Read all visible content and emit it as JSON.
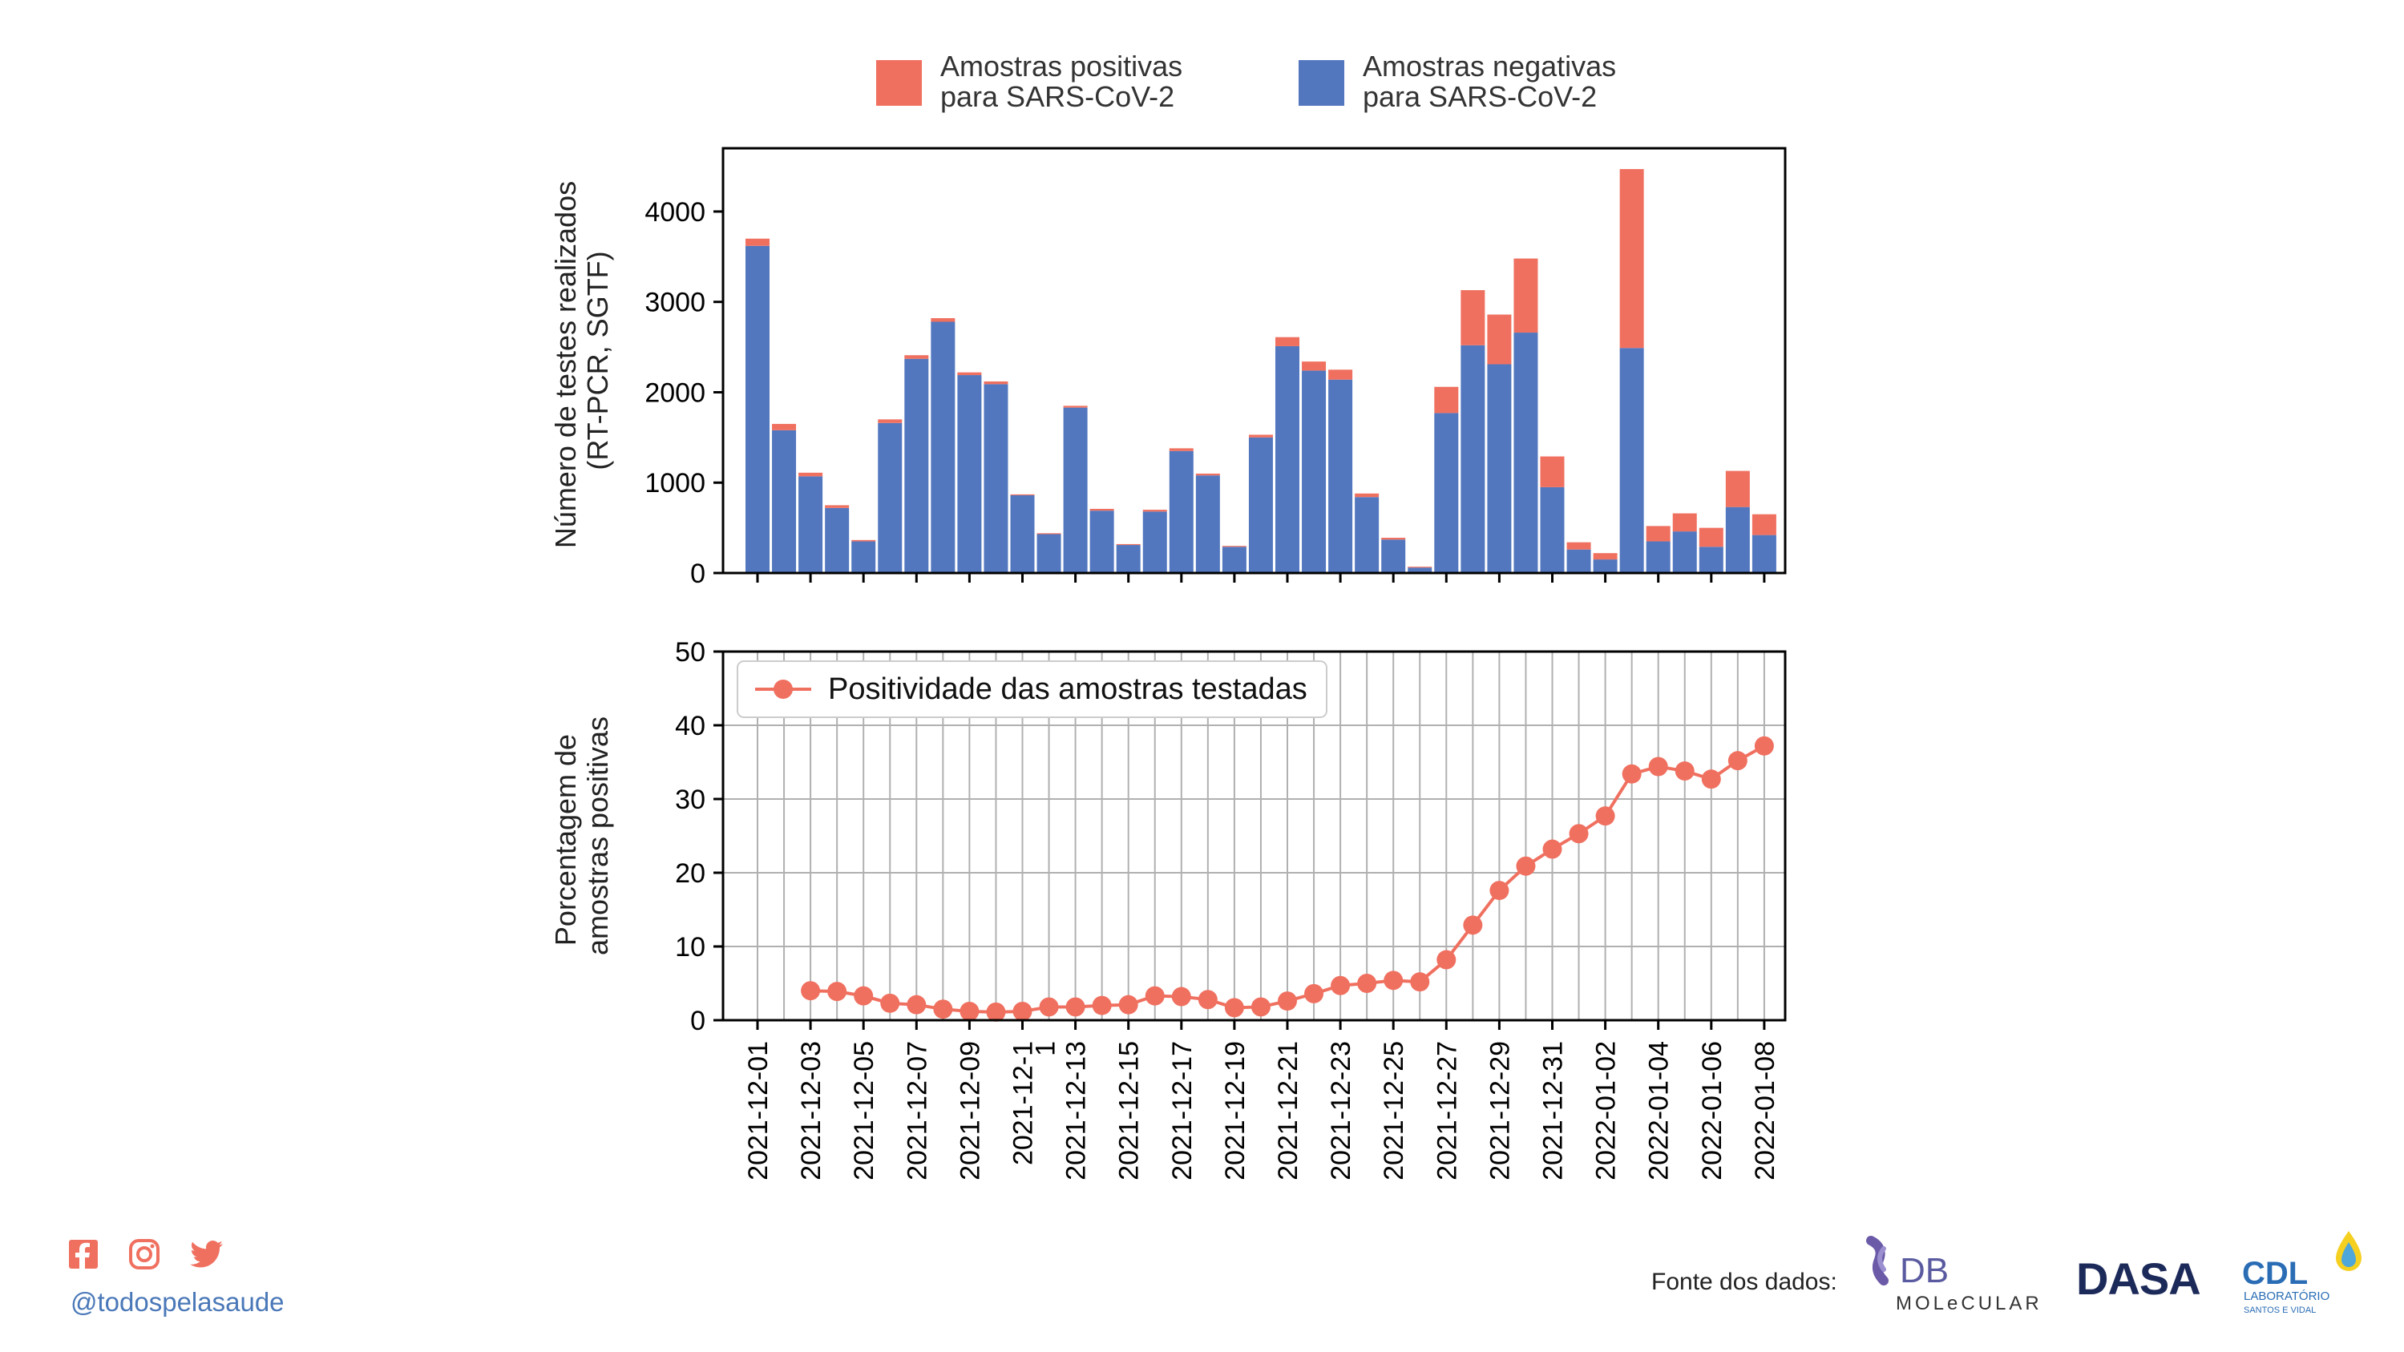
{
  "chart_data": [
    {
      "type": "bar",
      "stacked": true,
      "ylabel": "Número de testes realizados\n(RT-PCR, SGTF)",
      "ylim": [
        0,
        4700
      ],
      "yticks": [
        0,
        1000,
        2000,
        3000,
        4000
      ],
      "legend_position": "top-center, above plot",
      "series": [
        {
          "name": "Amostras positivas\npara SARS-CoV-2",
          "color": "#f07060",
          "values": [
            80,
            70,
            40,
            30,
            15,
            40,
            40,
            40,
            30,
            30,
            10,
            10,
            20,
            20,
            10,
            20,
            30,
            20,
            10,
            30,
            100,
            100,
            110,
            40,
            20,
            10,
            290,
            610,
            550,
            820,
            340,
            80,
            70,
            1980,
            170,
            200,
            210,
            400,
            230
          ]
        },
        {
          "name": "Amostras negativas\npara SARS-CoV-2",
          "color": "#5277bf",
          "values": [
            3620,
            1580,
            1070,
            720,
            350,
            1660,
            2370,
            2780,
            2190,
            2090,
            860,
            430,
            1830,
            690,
            310,
            680,
            1350,
            1080,
            290,
            1500,
            2510,
            2240,
            2140,
            840,
            370,
            60,
            1770,
            2520,
            2310,
            2660,
            950,
            260,
            150,
            2490,
            350,
            460,
            290,
            730,
            420
          ]
        }
      ]
    },
    {
      "type": "line",
      "ylabel": "Porcentagem de\namostras positivas",
      "ylim": [
        0,
        50
      ],
      "yticks": [
        0,
        10,
        20,
        30,
        40,
        50
      ],
      "grid": true,
      "legend_position": "top-left",
      "x_tick_labels": [
        "2021-12-01",
        "2021-12-03",
        "2021-12-05",
        "2021-12-07",
        "2021-12-09",
        "2021-12-1",
        "2021-12-13",
        "2021-12-15",
        "2021-12-17",
        "2021-12-19",
        "2021-12-21",
        "2021-12-23",
        "2021-12-25",
        "2021-12-27",
        "2021-12-29",
        "2021-12-31",
        "2022-01-02",
        "2022-01-04",
        "2022-01-06",
        "2022-01-08"
      ],
      "extra_tick_label": "1",
      "series": [
        {
          "name": "Positividade das amostras testadas",
          "color": "#f07060",
          "x": [
            "2021-12-03",
            "2021-12-04",
            "2021-12-05",
            "2021-12-06",
            "2021-12-07",
            "2021-12-08",
            "2021-12-09",
            "2021-12-10",
            "2021-12-11",
            "2021-12-12",
            "2021-12-13",
            "2021-12-14",
            "2021-12-15",
            "2021-12-16",
            "2021-12-17",
            "2021-12-18",
            "2021-12-19",
            "2021-12-20",
            "2021-12-21",
            "2021-12-22",
            "2021-12-23",
            "2021-12-24",
            "2021-12-25",
            "2021-12-26",
            "2021-12-27",
            "2021-12-28",
            "2021-12-29",
            "2021-12-30",
            "2021-12-31",
            "2022-01-01",
            "2022-01-02",
            "2022-01-03",
            "2022-01-04",
            "2022-01-05",
            "2022-01-06",
            "2022-01-07",
            "2022-01-08"
          ],
          "values": [
            4.0,
            3.9,
            3.3,
            2.3,
            2.1,
            1.5,
            1.2,
            1.1,
            1.2,
            1.8,
            1.8,
            2.0,
            2.1,
            3.3,
            3.2,
            2.8,
            1.7,
            1.8,
            2.6,
            3.6,
            4.7,
            5.0,
            5.4,
            5.2,
            8.2,
            12.9,
            17.6,
            20.9,
            23.2,
            25.3,
            27.7,
            33.4,
            34.4,
            33.8,
            32.7,
            35.2,
            37.2
          ]
        }
      ]
    }
  ],
  "footer": {
    "handle": "@todospelasaude",
    "fonte": "Fonte dos dados:",
    "social_icons": [
      "facebook-icon",
      "instagram-icon",
      "twitter-icon"
    ],
    "logos": {
      "db_line1": "DB",
      "db_line2": "MOLeCULAR",
      "dasa": "DASA",
      "cdl_main": "CDL",
      "cdl_sub1": "LABORATÓRIO",
      "cdl_sub2": "SANTOS E VIDAL"
    },
    "accent_color": "#f07060",
    "handle_color": "#4a78b8"
  }
}
